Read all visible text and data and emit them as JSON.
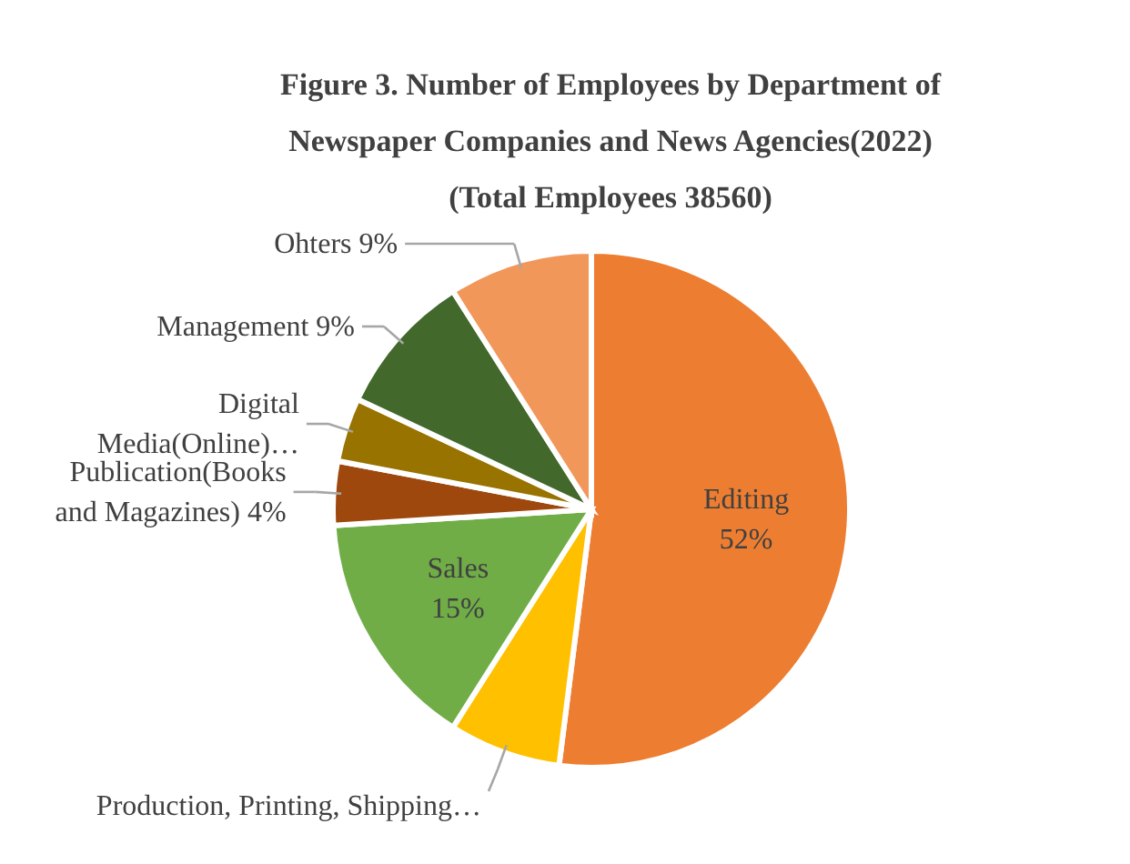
{
  "chart_data": {
    "type": "pie",
    "title": "Figure 3. Number of Employees by Department of Newspaper Companies and News Agencies(2022)",
    "subtitle": "(Total Employees 38560)",
    "categories": [
      "Editing",
      "Production, Printing, Shipping…",
      "Sales",
      "Publication(Books and Magazines)",
      "Digital Media(Online)…",
      "Management",
      "Ohters"
    ],
    "values": [
      52,
      7,
      15,
      4,
      4,
      9,
      9
    ],
    "value_labels": [
      "52%",
      null,
      "15%",
      "4%",
      null,
      "9%",
      "9%"
    ],
    "colors": [
      "#ed7d31",
      "#ffc000",
      "#70ad47",
      "#9e480e",
      "#997300",
      "#43682b",
      "#f1975a"
    ]
  }
}
